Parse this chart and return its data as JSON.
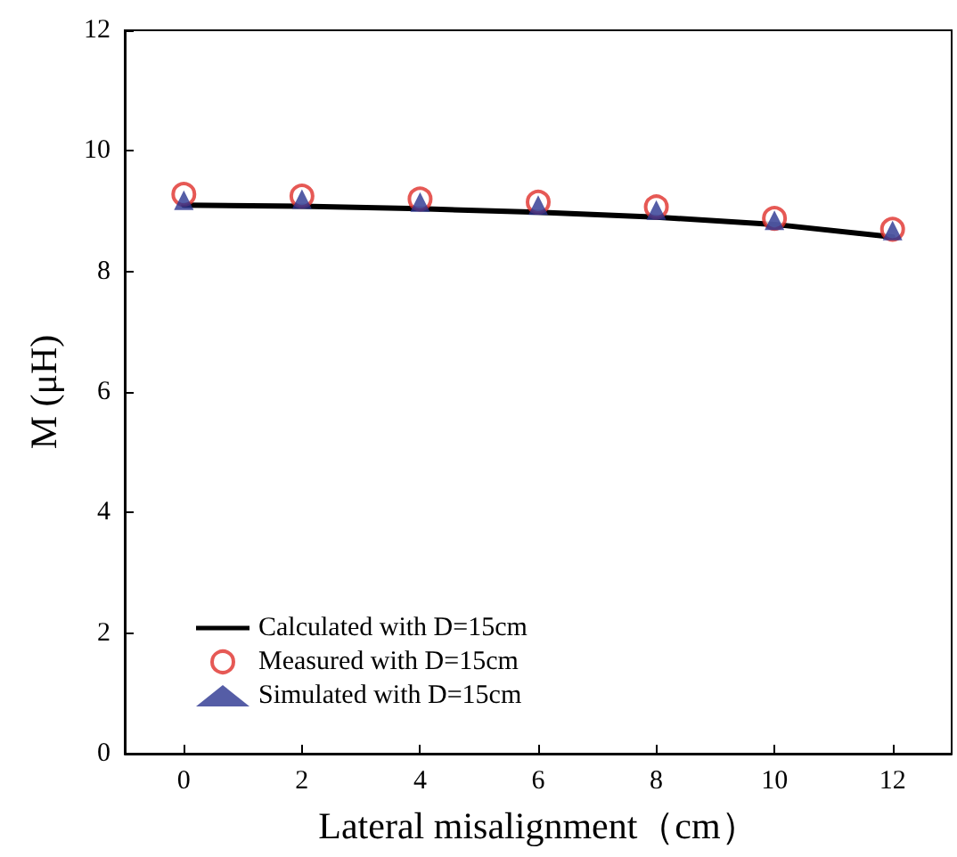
{
  "chart_data": {
    "type": "line",
    "xlabel": "Lateral misalignment（cm）",
    "ylabel": "M (μH)",
    "xlim": [
      -1,
      13
    ],
    "xticks": [
      0,
      2,
      4,
      6,
      8,
      10,
      12
    ],
    "ylim": [
      0,
      12
    ],
    "yticks": [
      0,
      2,
      4,
      6,
      8,
      10,
      12
    ],
    "grid": false,
    "legend": "bottom left",
    "series": [
      {
        "name": "Calculated with D=15cm",
        "color": "#000000",
        "marker": "none",
        "x": [
          0,
          2,
          4,
          6,
          8,
          10,
          12
        ],
        "values": [
          9.1,
          9.08,
          9.04,
          8.98,
          8.9,
          8.78,
          8.57
        ]
      },
      {
        "name": "Measured with D=15cm",
        "type": "scatter",
        "color": "#e0302a",
        "marker": "circle",
        "x": [
          0,
          2,
          4,
          6,
          8,
          10,
          12
        ],
        "values": [
          9.28,
          9.25,
          9.2,
          9.15,
          9.07,
          8.88,
          8.7
        ]
      },
      {
        "name": "Simulated with D=15cm",
        "type": "scatter",
        "color": "#2b3590",
        "marker": "triangle",
        "x": [
          0,
          2,
          4,
          6,
          8,
          10,
          12
        ],
        "values": [
          9.18,
          9.2,
          9.15,
          9.1,
          9.02,
          8.85,
          8.68
        ]
      }
    ]
  }
}
